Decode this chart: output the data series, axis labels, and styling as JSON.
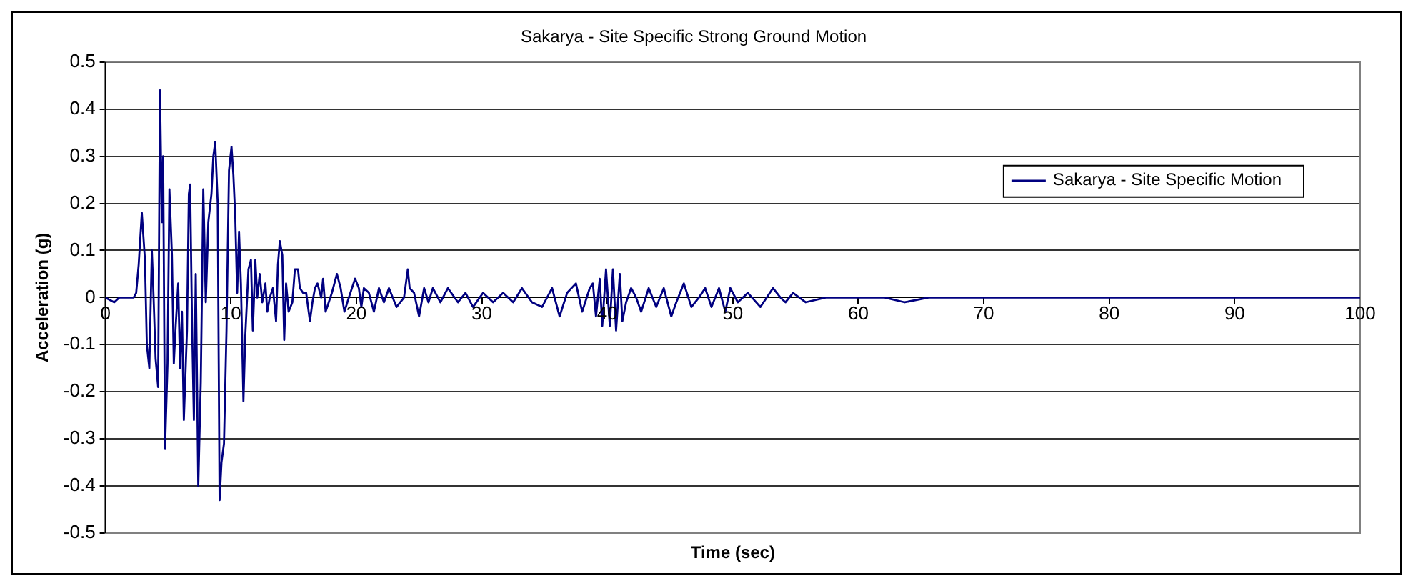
{
  "chart_data": {
    "type": "line",
    "title": "Sakarya - Site Specific Strong Ground Motion",
    "xlabel": "Time (sec)",
    "ylabel": "Acceleration (g)",
    "xlim": [
      0,
      100
    ],
    "xticks": [
      0,
      10,
      20,
      30,
      40,
      50,
      60,
      70,
      80,
      90,
      100
    ],
    "ylim": [
      -0.5,
      0.5
    ],
    "yticks": [
      -0.5,
      -0.4,
      -0.3,
      -0.2,
      -0.1,
      0,
      0.1,
      0.2,
      0.3,
      0.4,
      0.5
    ],
    "grid": "y",
    "legend": "top right",
    "marker": "none",
    "line_style": "solid",
    "series": [
      {
        "name": "Sakarya - Site Specific Motion",
        "color": "#000080",
        "x": [
          0,
          0.7,
          1.1,
          2.25,
          2.45,
          2.65,
          2.9,
          3.15,
          3.3,
          3.5,
          3.7,
          3.8,
          4.0,
          4.2,
          4.35,
          4.5,
          4.6,
          4.75,
          4.95,
          5.1,
          5.3,
          5.45,
          5.6,
          5.8,
          5.95,
          6.1,
          6.25,
          6.5,
          6.65,
          6.75,
          6.9,
          7.05,
          7.2,
          7.4,
          7.6,
          7.8,
          8.0,
          8.2,
          8.45,
          8.6,
          8.75,
          8.95,
          9.1,
          9.25,
          9.45,
          9.65,
          9.85,
          10.05,
          10.2,
          10.35,
          10.5,
          10.65,
          10.8,
          11.0,
          11.15,
          11.4,
          11.6,
          11.75,
          11.95,
          12.1,
          12.3,
          12.5,
          12.75,
          12.9,
          13.1,
          13.35,
          13.6,
          13.75,
          13.9,
          14.1,
          14.25,
          14.4,
          14.6,
          14.9,
          15.1,
          15.35,
          15.5,
          15.75,
          16.0,
          16.3,
          16.5,
          16.7,
          16.9,
          17.2,
          17.35,
          17.55,
          17.8,
          18.05,
          18.45,
          18.75,
          19.05,
          19.4,
          19.9,
          20.2,
          20.4,
          20.6,
          21.0,
          21.4,
          21.8,
          22.2,
          22.6,
          23.2,
          23.8,
          24.1,
          24.25,
          24.6,
          25.0,
          25.4,
          25.75,
          26.1,
          26.7,
          27.3,
          28.1,
          28.7,
          29.3,
          30.1,
          30.9,
          31.7,
          32.5,
          33.2,
          34.0,
          34.8,
          35.6,
          36.2,
          36.8,
          37.5,
          38.0,
          38.6,
          38.85,
          39.1,
          39.4,
          39.6,
          39.9,
          40.2,
          40.45,
          40.7,
          41.0,
          41.2,
          41.5,
          41.9,
          42.3,
          42.7,
          43.3,
          43.9,
          44.5,
          45.1,
          45.5,
          46.1,
          46.7,
          47.3,
          47.8,
          48.3,
          48.9,
          49.4,
          49.8,
          50.4,
          51.2,
          52.2,
          53.2,
          53.8,
          54.2,
          54.8,
          55.8,
          57.4,
          59.0,
          60.5,
          62.1,
          63.7,
          65.6,
          70,
          75,
          80,
          85,
          90,
          95,
          100
        ],
        "values": [
          0,
          -0.01,
          0,
          0,
          0.01,
          0.07,
          0.18,
          0.08,
          -0.1,
          -0.15,
          0.1,
          0.03,
          -0.13,
          -0.19,
          0.44,
          0.16,
          0.3,
          -0.32,
          -0.14,
          0.23,
          0.09,
          -0.14,
          -0.06,
          0.03,
          -0.15,
          -0.03,
          -0.26,
          -0.07,
          0.22,
          0.24,
          -0.05,
          -0.26,
          0.05,
          -0.4,
          -0.18,
          0.23,
          -0.01,
          0.16,
          0.22,
          0.3,
          0.33,
          0.2,
          -0.43,
          -0.35,
          -0.31,
          -0.07,
          0.27,
          0.32,
          0.26,
          0.17,
          0.01,
          0.14,
          0.03,
          -0.22,
          -0.08,
          0.06,
          0.08,
          -0.07,
          0.08,
          0,
          0.05,
          -0.01,
          0.03,
          -0.03,
          0,
          0.02,
          -0.05,
          0.07,
          0.12,
          0.09,
          -0.09,
          0.03,
          -0.03,
          -0.01,
          0.06,
          0.06,
          0.02,
          0.01,
          0.01,
          -0.05,
          -0.01,
          0.02,
          0.03,
          0,
          0.04,
          -0.03,
          -0.01,
          0.01,
          0.05,
          0.02,
          -0.03,
          0,
          0.04,
          0.02,
          -0.02,
          0.02,
          0.01,
          -0.03,
          0.02,
          -0.01,
          0.02,
          -0.02,
          0,
          0.06,
          0.02,
          0.01,
          -0.04,
          0.02,
          -0.01,
          0.02,
          -0.01,
          0.02,
          -0.01,
          0.01,
          -0.02,
          0.01,
          -0.01,
          0.01,
          -0.01,
          0.02,
          -0.01,
          -0.02,
          0.02,
          -0.04,
          0.01,
          0.03,
          -0.03,
          0.02,
          0.03,
          -0.04,
          0.04,
          -0.06,
          0.06,
          -0.06,
          0.06,
          -0.07,
          0.05,
          -0.05,
          -0.01,
          0.02,
          0,
          -0.03,
          0.02,
          -0.02,
          0.02,
          -0.04,
          -0.01,
          0.03,
          -0.02,
          0,
          0.02,
          -0.02,
          0.02,
          -0.03,
          0.02,
          -0.01,
          0.01,
          -0.02,
          0.02,
          0,
          -0.01,
          0.01,
          -0.01,
          0,
          0,
          0,
          0,
          -0.01,
          0,
          0,
          0,
          0,
          0,
          0,
          0,
          0
        ]
      }
    ]
  }
}
